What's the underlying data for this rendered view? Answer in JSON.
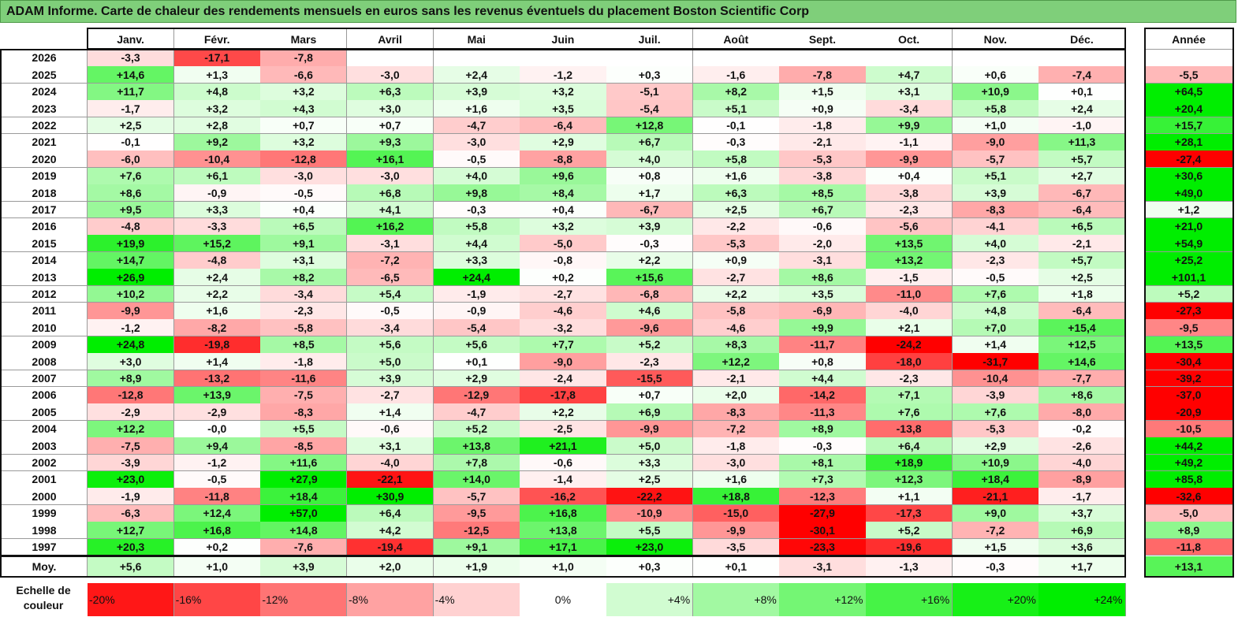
{
  "title": "ADAM Informe. Carte de chaleur des rendements mensuels en euros sans les revenus éventuels du placement Boston Scientific Corp",
  "chart_data": {
    "type": "heatmap",
    "title": "ADAM Informe. Carte de chaleur des rendements mensuels en euros sans les revenus éventuels du placement Boston Scientific Corp",
    "months": [
      "Janv.",
      "Févr.",
      "Mars",
      "Avril",
      "Mai",
      "Juin",
      "Juil.",
      "Août",
      "Sept.",
      "Oct.",
      "Nov.",
      "Déc."
    ],
    "year_header": "Année",
    "rows": [
      {
        "year": "2026",
        "values": [
          "-3,3",
          "-17,1",
          "-7,8",
          "",
          "",
          "",
          "",
          "",
          "",
          "",
          "",
          ""
        ],
        "annual": ""
      },
      {
        "year": "2025",
        "values": [
          "+14,6",
          "+1,3",
          "-6,6",
          "-3,0",
          "+2,4",
          "-1,2",
          "+0,3",
          "-1,6",
          "-7,8",
          "+4,7",
          "+0,6",
          "-7,4"
        ],
        "annual": "-5,5"
      },
      {
        "year": "2024",
        "values": [
          "+11,7",
          "+4,8",
          "+3,2",
          "+6,3",
          "+3,9",
          "+3,2",
          "-5,1",
          "+8,2",
          "+1,5",
          "+3,1",
          "+10,9",
          "+0,1"
        ],
        "annual": "+64,5"
      },
      {
        "year": "2023",
        "values": [
          "-1,7",
          "+3,2",
          "+4,3",
          "+3,0",
          "+1,6",
          "+3,5",
          "-5,4",
          "+5,1",
          "+0,9",
          "-3,4",
          "+5,8",
          "+2,4"
        ],
        "annual": "+20,4"
      },
      {
        "year": "2022",
        "values": [
          "+2,5",
          "+2,8",
          "+0,7",
          "+0,7",
          "-4,7",
          "-6,4",
          "+12,8",
          "-0,1",
          "-1,8",
          "+9,9",
          "+1,0",
          "-1,0"
        ],
        "annual": "+15,7"
      },
      {
        "year": "2021",
        "values": [
          "-0,1",
          "+9,2",
          "+3,2",
          "+9,3",
          "-3,0",
          "+2,9",
          "+6,7",
          "-0,3",
          "-2,1",
          "-1,1",
          "-9,0",
          "+11,3"
        ],
        "annual": "+28,1"
      },
      {
        "year": "2020",
        "values": [
          "-6,0",
          "-10,4",
          "-12,8",
          "+16,1",
          "-0,5",
          "-8,8",
          "+4,0",
          "+5,8",
          "-5,3",
          "-9,9",
          "-5,7",
          "+5,7"
        ],
        "annual": "-27,4"
      },
      {
        "year": "2019",
        "values": [
          "+7,6",
          "+6,1",
          "-3,0",
          "-3,0",
          "+4,0",
          "+9,6",
          "+0,8",
          "+1,6",
          "-3,8",
          "+0,4",
          "+5,1",
          "+2,7"
        ],
        "annual": "+30,6"
      },
      {
        "year": "2018",
        "values": [
          "+8,6",
          "-0,9",
          "-0,5",
          "+6,8",
          "+9,8",
          "+8,4",
          "+1,7",
          "+6,3",
          "+8,5",
          "-3,8",
          "+3,9",
          "-6,7"
        ],
        "annual": "+49,0"
      },
      {
        "year": "2017",
        "values": [
          "+9,5",
          "+3,3",
          "+0,4",
          "+4,1",
          "-0,3",
          "+0,4",
          "-6,7",
          "+2,5",
          "+6,7",
          "-2,3",
          "-8,3",
          "-6,4"
        ],
        "annual": "+1,2"
      },
      {
        "year": "2016",
        "values": [
          "-4,8",
          "-3,3",
          "+6,5",
          "+16,2",
          "+5,8",
          "+3,2",
          "+3,9",
          "-2,2",
          "-0,6",
          "-5,6",
          "-4,1",
          "+6,5"
        ],
        "annual": "+21,0"
      },
      {
        "year": "2015",
        "values": [
          "+19,9",
          "+15,2",
          "+9,1",
          "-3,1",
          "+4,4",
          "-5,0",
          "-0,3",
          "-5,3",
          "-2,0",
          "+13,5",
          "+4,0",
          "-2,1"
        ],
        "annual": "+54,9"
      },
      {
        "year": "2014",
        "values": [
          "+14,7",
          "-4,8",
          "+3,1",
          "-7,2",
          "+3,3",
          "-0,8",
          "+2,2",
          "+0,9",
          "-3,1",
          "+13,2",
          "-2,3",
          "+5,7"
        ],
        "annual": "+25,2"
      },
      {
        "year": "2013",
        "values": [
          "+26,9",
          "+2,4",
          "+8,2",
          "-6,5",
          "+24,4",
          "+0,2",
          "+15,6",
          "-2,7",
          "+8,6",
          "-1,5",
          "-0,5",
          "+2,5"
        ],
        "annual": "+101,1"
      },
      {
        "year": "2012",
        "values": [
          "+10,2",
          "+2,2",
          "-3,4",
          "+5,4",
          "-1,9",
          "-2,7",
          "-6,8",
          "+2,2",
          "+3,5",
          "-11,0",
          "+7,6",
          "+1,8"
        ],
        "annual": "+5,2"
      },
      {
        "year": "2011",
        "values": [
          "-9,9",
          "+1,6",
          "-2,3",
          "-0,5",
          "-0,9",
          "-4,6",
          "+4,6",
          "-5,8",
          "-6,9",
          "-4,0",
          "+4,8",
          "-6,4"
        ],
        "annual": "-27,3"
      },
      {
        "year": "2010",
        "values": [
          "-1,2",
          "-8,2",
          "-5,8",
          "-3,4",
          "-5,4",
          "-3,2",
          "-9,6",
          "-4,6",
          "+9,9",
          "+2,1",
          "+7,0",
          "+15,4"
        ],
        "annual": "-9,5"
      },
      {
        "year": "2009",
        "values": [
          "+24,8",
          "-19,8",
          "+8,5",
          "+5,6",
          "+5,6",
          "+7,7",
          "+5,2",
          "+8,3",
          "-11,7",
          "-24,2",
          "+1,4",
          "+12,5"
        ],
        "annual": "+13,5"
      },
      {
        "year": "2008",
        "values": [
          "+3,0",
          "+1,4",
          "-1,8",
          "+5,0",
          "+0,1",
          "-9,0",
          "-2,3",
          "+12,2",
          "+0,8",
          "-18,0",
          "-31,7",
          "+14,6"
        ],
        "annual": "-30,4"
      },
      {
        "year": "2007",
        "values": [
          "+8,9",
          "-13,2",
          "-11,6",
          "+3,9",
          "+2,9",
          "-2,4",
          "-15,5",
          "-2,1",
          "+4,4",
          "-2,3",
          "-10,4",
          "-7,7"
        ],
        "annual": "-39,2"
      },
      {
        "year": "2006",
        "values": [
          "-12,8",
          "+13,9",
          "-7,5",
          "-2,7",
          "-12,9",
          "-17,8",
          "+0,7",
          "+2,0",
          "-14,2",
          "+7,1",
          "-3,9",
          "+8,6"
        ],
        "annual": "-37,0"
      },
      {
        "year": "2005",
        "values": [
          "-2,9",
          "-2,9",
          "-8,3",
          "+1,4",
          "-4,7",
          "+2,2",
          "+6,9",
          "-8,3",
          "-11,3",
          "+7,6",
          "+7,6",
          "-8,0"
        ],
        "annual": "-20,9"
      },
      {
        "year": "2004",
        "values": [
          "+12,2",
          "-0,0",
          "+5,5",
          "-0,6",
          "+5,2",
          "-2,5",
          "-9,9",
          "-7,2",
          "+8,9",
          "-13,8",
          "-5,3",
          "-0,2"
        ],
        "annual": "-10,5"
      },
      {
        "year": "2003",
        "values": [
          "-7,5",
          "+9,4",
          "-8,5",
          "+3,1",
          "+13,8",
          "+21,1",
          "+5,0",
          "-1,8",
          "-0,3",
          "+6,4",
          "+2,9",
          "-2,6"
        ],
        "annual": "+44,2"
      },
      {
        "year": "2002",
        "values": [
          "-3,9",
          "-1,2",
          "+11,6",
          "-4,0",
          "+7,8",
          "-0,6",
          "+3,3",
          "-3,0",
          "+8,1",
          "+18,9",
          "+10,9",
          "-4,0"
        ],
        "annual": "+49,2"
      },
      {
        "year": "2001",
        "values": [
          "+23,0",
          "-0,5",
          "+27,9",
          "-22,1",
          "+14,0",
          "-1,4",
          "+2,5",
          "+1,6",
          "+7,3",
          "+12,3",
          "+18,4",
          "-8,9"
        ],
        "annual": "+85,8"
      },
      {
        "year": "2000",
        "values": [
          "-1,9",
          "-11,8",
          "+18,4",
          "+30,9",
          "-5,7",
          "-16,2",
          "-22,2",
          "+18,8",
          "-12,3",
          "+1,1",
          "-21,1",
          "-1,7"
        ],
        "annual": "-32,6"
      },
      {
        "year": "1999",
        "values": [
          "-6,3",
          "+12,4",
          "+57,0",
          "+6,4",
          "-9,5",
          "+16,8",
          "-10,9",
          "-15,0",
          "-27,9",
          "-17,3",
          "+9,0",
          "+3,7"
        ],
        "annual": "-5,0"
      },
      {
        "year": "1998",
        "values": [
          "+12,7",
          "+16,8",
          "+14,8",
          "+4,2",
          "-12,5",
          "+13,8",
          "+5,5",
          "-9,9",
          "-30,1",
          "+5,2",
          "-7,2",
          "+6,9"
        ],
        "annual": "+8,9"
      },
      {
        "year": "1997",
        "values": [
          "+20,3",
          "+0,2",
          "-7,6",
          "-19,4",
          "+9,1",
          "+17,1",
          "+23,0",
          "-3,5",
          "-23,3",
          "-19,6",
          "+1,5",
          "+3,6"
        ],
        "annual": "-11,8"
      }
    ],
    "average": {
      "label": "Moy.",
      "values": [
        "+5,6",
        "+1,0",
        "+3,9",
        "+2,0",
        "+1,9",
        "+1,0",
        "+0,3",
        "+0,1",
        "-3,1",
        "-1,3",
        "-0,3",
        "+1,7"
      ],
      "annual": "+13,1"
    },
    "scale": {
      "label": "Echelle de couleur",
      "steps": [
        "-20%",
        "-16%",
        "-12%",
        "-8%",
        "-4%",
        "0%",
        "+4%",
        "+8%",
        "+12%",
        "+16%",
        "+20%",
        "+24%"
      ]
    },
    "colors": {
      "negative": "#ff0000",
      "neutral": "#ffffff",
      "positive": "#00ee00",
      "title_bg": "#7fcf7a"
    }
  }
}
